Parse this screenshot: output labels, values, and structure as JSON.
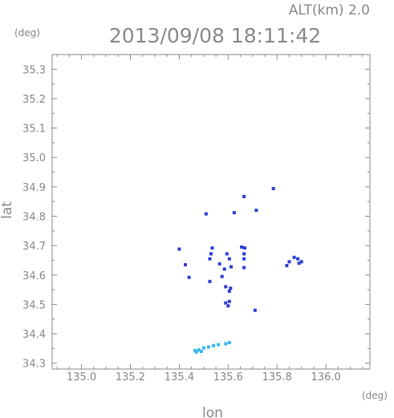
{
  "chart_data": {
    "type": "scatter",
    "title": "2013/09/08 18:11:42",
    "subtitle": "ALT(km) 2.0",
    "xlabel": "lon",
    "ylabel": "lat",
    "x_unit": "(deg)",
    "y_unit": "(deg)",
    "xlim": [
      134.88,
      136.18
    ],
    "ylim": [
      34.28,
      35.35
    ],
    "x_ticks": [
      "135.0",
      "135.2",
      "135.4",
      "135.6",
      "135.8",
      "136.0"
    ],
    "y_ticks": [
      "34.3",
      "34.4",
      "34.5",
      "34.6",
      "34.7",
      "34.8",
      "34.9",
      "35.0",
      "35.1",
      "35.2",
      "35.3"
    ],
    "grid": false,
    "colors": {
      "axis": "#8a8a8a",
      "echo_dark": "#2e3fd6",
      "echo_mid": "#3a78e8",
      "echo_light": "#38b6f0"
    },
    "series": [
      {
        "points": [
          [
            135.785,
            34.894
          ],
          [
            135.665,
            34.867
          ],
          [
            135.625,
            34.812
          ],
          [
            135.51,
            34.808
          ],
          [
            135.715,
            34.82
          ],
          [
            135.4,
            34.688
          ],
          [
            135.425,
            34.635
          ],
          [
            135.44,
            34.592
          ],
          [
            135.525,
            34.578
          ],
          [
            135.535,
            34.692
          ],
          [
            135.53,
            34.672
          ],
          [
            135.525,
            34.655
          ],
          [
            135.565,
            34.638
          ],
          [
            135.595,
            34.672
          ],
          [
            135.605,
            34.655
          ],
          [
            135.585,
            34.62
          ],
          [
            135.612,
            34.628
          ],
          [
            135.655,
            34.695
          ],
          [
            135.668,
            34.692
          ],
          [
            135.665,
            34.672
          ],
          [
            135.665,
            34.655
          ],
          [
            135.665,
            34.625
          ],
          [
            135.59,
            34.56
          ],
          [
            135.61,
            34.555
          ],
          [
            135.605,
            34.545
          ],
          [
            135.575,
            34.595
          ],
          [
            135.59,
            34.505
          ],
          [
            135.605,
            34.51
          ],
          [
            135.6,
            34.495
          ],
          [
            135.71,
            34.48
          ],
          [
            135.84,
            34.632
          ],
          [
            135.85,
            34.645
          ],
          [
            135.87,
            34.66
          ],
          [
            135.885,
            34.655
          ],
          [
            135.9,
            34.645
          ],
          [
            135.89,
            34.64
          ]
        ]
      },
      {
        "points": [
          [
            135.465,
            34.343
          ],
          [
            135.48,
            34.345
          ],
          [
            135.5,
            34.352
          ],
          [
            135.52,
            34.355
          ],
          [
            135.54,
            34.36
          ],
          [
            135.56,
            34.363
          ],
          [
            135.59,
            34.366
          ],
          [
            135.605,
            34.37
          ],
          [
            135.47,
            34.338
          ],
          [
            135.49,
            34.34
          ]
        ]
      }
    ]
  }
}
